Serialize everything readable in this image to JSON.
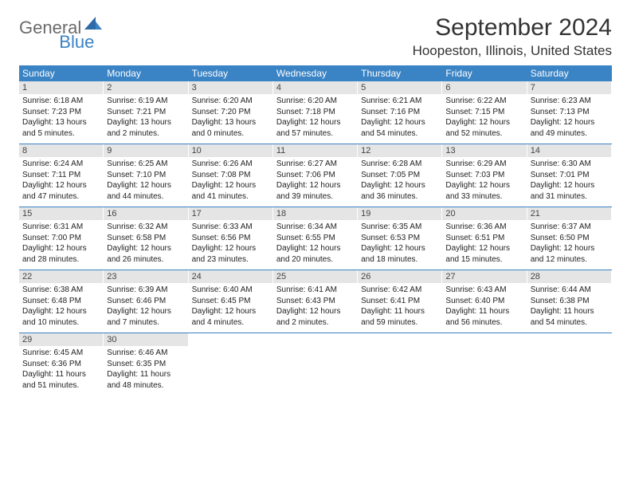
{
  "logo": {
    "text1": "General",
    "text2": "Blue"
  },
  "title": "September 2024",
  "location": "Hoopeston, Illinois, United States",
  "colors": {
    "header_bg": "#3a83c4",
    "daynum_bg": "#e5e5e5",
    "logo_gray": "#6b6b6b",
    "logo_blue": "#3a83c4"
  },
  "weekdays": [
    "Sunday",
    "Monday",
    "Tuesday",
    "Wednesday",
    "Thursday",
    "Friday",
    "Saturday"
  ],
  "weeks": [
    [
      {
        "n": "1",
        "sr": "Sunrise: 6:18 AM",
        "ss": "Sunset: 7:23 PM",
        "dl": "Daylight: 13 hours and 5 minutes."
      },
      {
        "n": "2",
        "sr": "Sunrise: 6:19 AM",
        "ss": "Sunset: 7:21 PM",
        "dl": "Daylight: 13 hours and 2 minutes."
      },
      {
        "n": "3",
        "sr": "Sunrise: 6:20 AM",
        "ss": "Sunset: 7:20 PM",
        "dl": "Daylight: 13 hours and 0 minutes."
      },
      {
        "n": "4",
        "sr": "Sunrise: 6:20 AM",
        "ss": "Sunset: 7:18 PM",
        "dl": "Daylight: 12 hours and 57 minutes."
      },
      {
        "n": "5",
        "sr": "Sunrise: 6:21 AM",
        "ss": "Sunset: 7:16 PM",
        "dl": "Daylight: 12 hours and 54 minutes."
      },
      {
        "n": "6",
        "sr": "Sunrise: 6:22 AM",
        "ss": "Sunset: 7:15 PM",
        "dl": "Daylight: 12 hours and 52 minutes."
      },
      {
        "n": "7",
        "sr": "Sunrise: 6:23 AM",
        "ss": "Sunset: 7:13 PM",
        "dl": "Daylight: 12 hours and 49 minutes."
      }
    ],
    [
      {
        "n": "8",
        "sr": "Sunrise: 6:24 AM",
        "ss": "Sunset: 7:11 PM",
        "dl": "Daylight: 12 hours and 47 minutes."
      },
      {
        "n": "9",
        "sr": "Sunrise: 6:25 AM",
        "ss": "Sunset: 7:10 PM",
        "dl": "Daylight: 12 hours and 44 minutes."
      },
      {
        "n": "10",
        "sr": "Sunrise: 6:26 AM",
        "ss": "Sunset: 7:08 PM",
        "dl": "Daylight: 12 hours and 41 minutes."
      },
      {
        "n": "11",
        "sr": "Sunrise: 6:27 AM",
        "ss": "Sunset: 7:06 PM",
        "dl": "Daylight: 12 hours and 39 minutes."
      },
      {
        "n": "12",
        "sr": "Sunrise: 6:28 AM",
        "ss": "Sunset: 7:05 PM",
        "dl": "Daylight: 12 hours and 36 minutes."
      },
      {
        "n": "13",
        "sr": "Sunrise: 6:29 AM",
        "ss": "Sunset: 7:03 PM",
        "dl": "Daylight: 12 hours and 33 minutes."
      },
      {
        "n": "14",
        "sr": "Sunrise: 6:30 AM",
        "ss": "Sunset: 7:01 PM",
        "dl": "Daylight: 12 hours and 31 minutes."
      }
    ],
    [
      {
        "n": "15",
        "sr": "Sunrise: 6:31 AM",
        "ss": "Sunset: 7:00 PM",
        "dl": "Daylight: 12 hours and 28 minutes."
      },
      {
        "n": "16",
        "sr": "Sunrise: 6:32 AM",
        "ss": "Sunset: 6:58 PM",
        "dl": "Daylight: 12 hours and 26 minutes."
      },
      {
        "n": "17",
        "sr": "Sunrise: 6:33 AM",
        "ss": "Sunset: 6:56 PM",
        "dl": "Daylight: 12 hours and 23 minutes."
      },
      {
        "n": "18",
        "sr": "Sunrise: 6:34 AM",
        "ss": "Sunset: 6:55 PM",
        "dl": "Daylight: 12 hours and 20 minutes."
      },
      {
        "n": "19",
        "sr": "Sunrise: 6:35 AM",
        "ss": "Sunset: 6:53 PM",
        "dl": "Daylight: 12 hours and 18 minutes."
      },
      {
        "n": "20",
        "sr": "Sunrise: 6:36 AM",
        "ss": "Sunset: 6:51 PM",
        "dl": "Daylight: 12 hours and 15 minutes."
      },
      {
        "n": "21",
        "sr": "Sunrise: 6:37 AM",
        "ss": "Sunset: 6:50 PM",
        "dl": "Daylight: 12 hours and 12 minutes."
      }
    ],
    [
      {
        "n": "22",
        "sr": "Sunrise: 6:38 AM",
        "ss": "Sunset: 6:48 PM",
        "dl": "Daylight: 12 hours and 10 minutes."
      },
      {
        "n": "23",
        "sr": "Sunrise: 6:39 AM",
        "ss": "Sunset: 6:46 PM",
        "dl": "Daylight: 12 hours and 7 minutes."
      },
      {
        "n": "24",
        "sr": "Sunrise: 6:40 AM",
        "ss": "Sunset: 6:45 PM",
        "dl": "Daylight: 12 hours and 4 minutes."
      },
      {
        "n": "25",
        "sr": "Sunrise: 6:41 AM",
        "ss": "Sunset: 6:43 PM",
        "dl": "Daylight: 12 hours and 2 minutes."
      },
      {
        "n": "26",
        "sr": "Sunrise: 6:42 AM",
        "ss": "Sunset: 6:41 PM",
        "dl": "Daylight: 11 hours and 59 minutes."
      },
      {
        "n": "27",
        "sr": "Sunrise: 6:43 AM",
        "ss": "Sunset: 6:40 PM",
        "dl": "Daylight: 11 hours and 56 minutes."
      },
      {
        "n": "28",
        "sr": "Sunrise: 6:44 AM",
        "ss": "Sunset: 6:38 PM",
        "dl": "Daylight: 11 hours and 54 minutes."
      }
    ],
    [
      {
        "n": "29",
        "sr": "Sunrise: 6:45 AM",
        "ss": "Sunset: 6:36 PM",
        "dl": "Daylight: 11 hours and 51 minutes."
      },
      {
        "n": "30",
        "sr": "Sunrise: 6:46 AM",
        "ss": "Sunset: 6:35 PM",
        "dl": "Daylight: 11 hours and 48 minutes."
      },
      null,
      null,
      null,
      null,
      null
    ]
  ]
}
